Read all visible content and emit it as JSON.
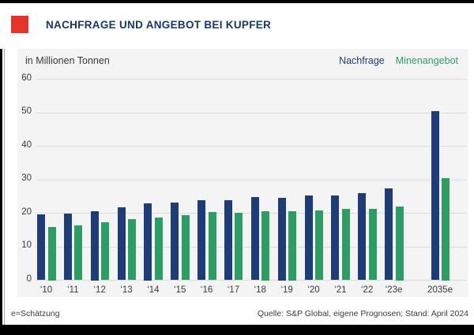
{
  "header": {
    "title": "NACHFRAGE UND ANGEBOT BEI KUPFER",
    "accent_color": "#e6332a",
    "title_color": "#17356f"
  },
  "footer": {
    "estimate_note": "e=Schätzung",
    "source": "Quelle: S&P Global, eigene Prognosen; Stand: April 2024"
  },
  "chart_data": {
    "type": "bar",
    "title": "NACHFRAGE UND ANGEBOT BEI KUPFER",
    "unit_label": "in Millionen Tonnen",
    "categories": [
      "‘10",
      "‘11",
      "‘12",
      "‘13",
      "‘14",
      "‘15",
      "‘16",
      "‘17",
      "‘18",
      "‘19",
      "‘20",
      "‘21",
      "‘22",
      "‘23e",
      "2035e"
    ],
    "series": [
      {
        "name": "Nachfrage",
        "color": "#1e3d78",
        "values": [
          19.6,
          19.9,
          20.5,
          21.7,
          23.0,
          23.2,
          23.8,
          23.8,
          24.8,
          24.5,
          25.3,
          25.3,
          26.1,
          27.3,
          50.4
        ]
      },
      {
        "name": "Minenangebot",
        "color": "#2d9e63",
        "values": [
          16.0,
          16.4,
          17.2,
          18.3,
          18.7,
          19.4,
          20.3,
          20.1,
          20.5,
          20.5,
          20.8,
          21.3,
          21.4,
          22.0,
          30.5
        ]
      }
    ],
    "xlabel": "",
    "ylabel": "in Millionen Tonnen",
    "ylim": [
      0,
      60
    ],
    "yticks": [
      0,
      10,
      20,
      30,
      40,
      50,
      60
    ],
    "grid": "horizontal",
    "legend_position": "top-right",
    "background_color": "#f4f4f4"
  }
}
